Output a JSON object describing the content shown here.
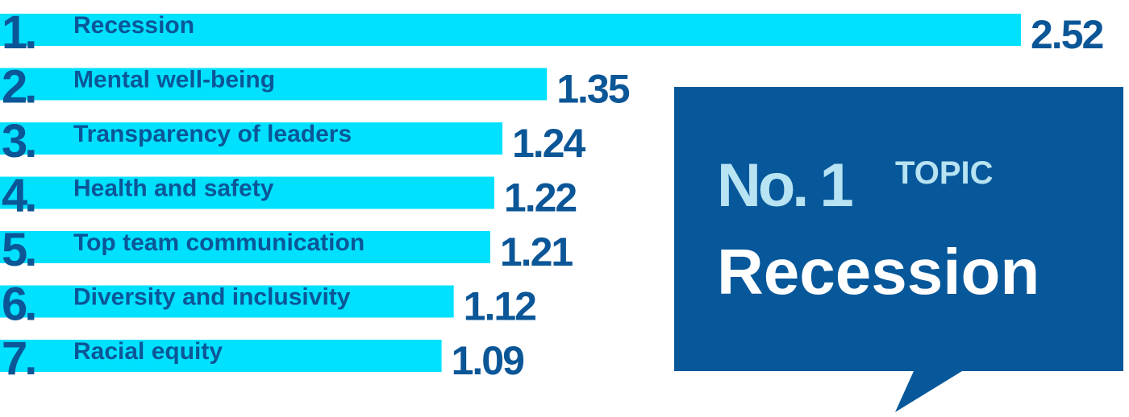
{
  "colors": {
    "bar": "#00e1ff",
    "text": "#0b5697",
    "callout_bg": "#07589a",
    "callout_accent": "#b7e3f2",
    "callout_text": "#ffffff"
  },
  "chart_data": {
    "type": "bar",
    "orientation": "horizontal",
    "ranks": [
      "1.",
      "2.",
      "3.",
      "4.",
      "5.",
      "6.",
      "7."
    ],
    "categories": [
      "Recession",
      "Mental well-being",
      "Transparency of leaders",
      "Health and safety",
      "Top team communication",
      "Diversity and inclusivity",
      "Racial equity"
    ],
    "values": [
      2.52,
      1.35,
      1.24,
      1.22,
      1.21,
      1.12,
      1.09
    ],
    "value_labels": [
      "2.52",
      "1.35",
      "1.24",
      "1.22",
      "1.21",
      "1.12",
      "1.09"
    ]
  },
  "callout": {
    "no_label": "No. 1",
    "topic_label": "TOPIC",
    "value": "Recession"
  }
}
